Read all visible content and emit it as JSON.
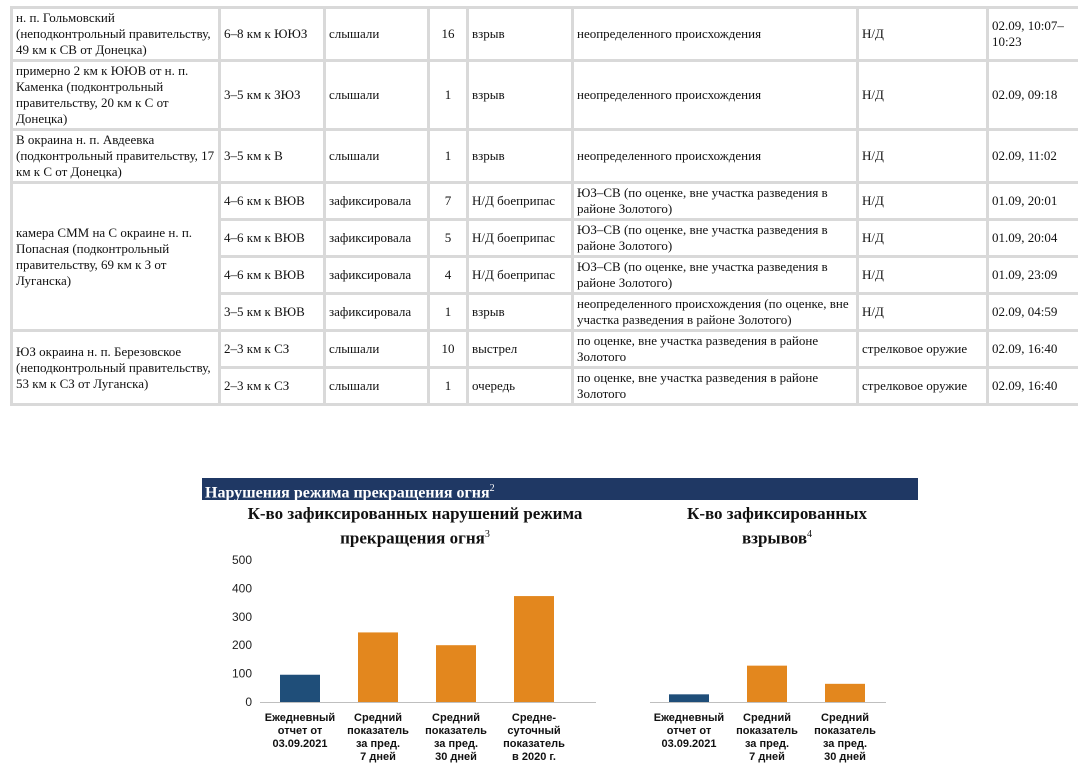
{
  "table": {
    "groups": [
      {
        "location": "н. п. Гольмовский (неподконтрольный правительству, 49 км к СВ от Донецка)",
        "rows": [
          {
            "distance": "6–8 км к ЮЮЗ",
            "mode": "слышали",
            "count": "16",
            "type": "взрыв",
            "direction": "неопределенного происхождения",
            "weapon": "Н/Д",
            "time": "02.09, 10:07–10:23"
          }
        ]
      },
      {
        "location": "примерно 2 км к ЮЮВ от н. п. Каменка (подконтрольный правительству, 20 км к С от Донецка)",
        "rows": [
          {
            "distance": "3–5 км к ЗЮЗ",
            "mode": "слышали",
            "count": "1",
            "type": "взрыв",
            "direction": "неопределенного происхождения",
            "weapon": "Н/Д",
            "time": "02.09, 09:18"
          }
        ]
      },
      {
        "location": "В окраина н. п. Авдеевка (подконтрольный правительству, 17 км к С от Донецка)",
        "rows": [
          {
            "distance": "3–5 км к В",
            "mode": "слышали",
            "count": "1",
            "type": "взрыв",
            "direction": "неопределенного происхождения",
            "weapon": "Н/Д",
            "time": "02.09, 11:02"
          }
        ]
      },
      {
        "location": "камера СММ на С окраине н. п. Попасная (подконтрольный правительству, 69 км к З от Луганска)",
        "rows": [
          {
            "distance": "4–6 км к ВЮВ",
            "mode": "зафиксировала",
            "count": "7",
            "type": "Н/Д боеприпас",
            "direction": "ЮЗ–СВ (по оценке, вне участка разведения в районе Золотого)",
            "weapon": "Н/Д",
            "time": "01.09, 20:01"
          },
          {
            "distance": "4–6 км к ВЮВ",
            "mode": "зафиксировала",
            "count": "5",
            "type": "Н/Д боеприпас",
            "direction": "ЮЗ–СВ (по оценке, вне участка разведения в районе Золотого)",
            "weapon": "Н/Д",
            "time": "01.09, 20:04"
          },
          {
            "distance": "4–6 км к ВЮВ",
            "mode": "зафиксировала",
            "count": "4",
            "type": "Н/Д боеприпас",
            "direction": "ЮЗ–СВ (по оценке, вне участка разведения в районе Золотого)",
            "weapon": "Н/Д",
            "time": "01.09, 23:09"
          },
          {
            "distance": "3–5 км к ВЮВ",
            "mode": "зафиксировала",
            "count": "1",
            "type": "взрыв",
            "direction": "неопределенного происхождения (по оценке, вне участка разведения в районе Золотого)",
            "weapon": "Н/Д",
            "time": "02.09, 04:59"
          }
        ]
      },
      {
        "location": "ЮЗ окраина н. п. Березовское (неподконтрольный правительству, 53 км к СЗ от Луганска)",
        "rows": [
          {
            "distance": "2–3 км к СЗ",
            "mode": "слышали",
            "count": "10",
            "type": "выстрел",
            "direction": "по оценке, вне участка разведения в районе Золотого",
            "weapon": "стрелковое оружие",
            "time": "02.09, 16:40"
          },
          {
            "distance": "2–3 км к СЗ",
            "mode": "слышали",
            "count": "1",
            "type": "очередь",
            "direction": "по оценке, вне участка разведения в районе Золотого",
            "weapon": "стрелковое оружие",
            "time": "02.09, 16:40"
          }
        ]
      }
    ]
  },
  "section": {
    "title": "Нарушения режима прекращения огня",
    "footnote": "2"
  },
  "colors": {
    "daily": "#1f4e79",
    "average": "#e3871e",
    "banner": "#1f3864",
    "axis": "#bfbfbf"
  },
  "chart_data": [
    {
      "type": "bar",
      "title": "К-во зафиксированных нарушений режима прекращения огня",
      "title_footnote": "3",
      "categories": [
        "Ежедневный отчет от 03.09.2021",
        "Средний показатель за пред. 7 дней",
        "Средний показатель за пред. 30 дней",
        "Средне-суточный показатель в 2020 г."
      ],
      "category_lines": [
        [
          "Ежедневный",
          "отчет от",
          "03.09.2021"
        ],
        [
          "Средний",
          "показатель",
          "за пред.",
          "7 дней"
        ],
        [
          "Средний",
          "показатель",
          "за пред.",
          "30 дней"
        ],
        [
          "Средне-",
          "суточный",
          "показатель",
          "в 2020 г."
        ]
      ],
      "values": [
        96,
        245,
        200,
        373
      ],
      "bar_colors": [
        "#1f4e79",
        "#e3871e",
        "#e3871e",
        "#e3871e"
      ],
      "ylim": [
        0,
        500
      ],
      "yticks": [
        0,
        100,
        200,
        300,
        400,
        500
      ],
      "grid": false,
      "legend": "none"
    },
    {
      "type": "bar",
      "title": "К-во зафиксированных взрывов",
      "title_footnote": "4",
      "categories": [
        "Ежедневный отчет от 03.09.2021",
        "Средний показатель за пред. 7 дней",
        "Средний показатель за пред. 30 дней"
      ],
      "category_lines": [
        [
          "Ежедневный",
          "отчет от",
          "03.09.2021"
        ],
        [
          "Средний",
          "показатель",
          "за пред.",
          "7 дней"
        ],
        [
          "Средний",
          "показатель",
          "за пред.",
          "30 дней"
        ]
      ],
      "values": [
        27,
        128,
        64
      ],
      "bar_colors": [
        "#1f4e79",
        "#e3871e",
        "#e3871e"
      ],
      "ylim": [
        0,
        500
      ],
      "grid": false,
      "legend": "none"
    }
  ]
}
